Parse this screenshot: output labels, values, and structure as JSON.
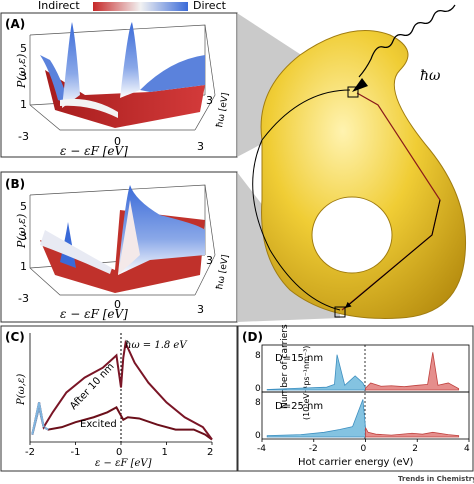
{
  "colorbar": {
    "left_label": "Indirect",
    "right_label": "Direct",
    "left_color": "#c62828",
    "mid_color": "#f2f2f2",
    "right_color": "#3a6ad8"
  },
  "panel_a": {
    "label": "(A)",
    "z_axis_label": "P(ω,ε)",
    "z_ticks": [
      "1",
      "3",
      "5"
    ],
    "x_ticks": [
      "-3",
      "0",
      "3"
    ],
    "x_axis_label": "ε − εF [eV]",
    "depth_tick": "3",
    "depth_axis_label": "ħω [eV]"
  },
  "panel_b": {
    "label": "(B)",
    "z_axis_label": "P(ω,ε)",
    "z_ticks": [
      "1",
      "3",
      "5"
    ],
    "x_ticks": [
      "-3",
      "0",
      "3"
    ],
    "x_axis_label": "ε − εF [eV]",
    "depth_tick": "3",
    "depth_axis_label": "ħω [eV]"
  },
  "illustration": {
    "photon_label": "ħω",
    "body_color": "#e8c22a"
  },
  "panel_c": {
    "label": "(C)",
    "photon_annotation": "ħω = 1.8 eV",
    "curve_labels": [
      "After 10 nm",
      "Excited"
    ],
    "y_axis_label": "P(ω,ε)",
    "x_axis_label": "ε − εF [eV]",
    "x_ticks": [
      "-2",
      "-1",
      "0",
      "1",
      "2"
    ]
  },
  "panel_d": {
    "label": "(D)",
    "subpanels": [
      {
        "label": "D=15 nm",
        "y_ticks": [
          "0",
          "8"
        ]
      },
      {
        "label": "D=25 nm",
        "y_ticks": [
          "0",
          "8"
        ]
      }
    ],
    "y_axis_label_line1": "Number of carriers",
    "y_axis_label_line2": "(10³eV⁻¹ps⁻¹nm⁻³)",
    "x_axis_label": "Hot carrier energy (eV)",
    "x_ticks": [
      "-4",
      "-2",
      "0",
      "2",
      "4"
    ]
  },
  "credit": "Trends in Chemistry",
  "chart_data": [
    {
      "type": "line",
      "panel": "C",
      "x_range": [
        -2,
        2
      ],
      "series": [
        {
          "x": [
            -1.95,
            -1.8,
            -1.7,
            -1.6,
            -1.3,
            -1.0,
            -0.6,
            -0.3,
            -0.1,
            0.05,
            0.15,
            0.4,
            0.8,
            1.2,
            1.6,
            1.85,
            2.0
          ],
          "y": [
            0.3,
            1.4,
            0.6,
            0.5,
            0.6,
            0.8,
            1.0,
            1.2,
            1.4,
            0.9,
            1.0,
            0.95,
            0.7,
            0.5,
            0.5,
            0.3,
            0.1
          ]
        },
        {
          "x": [
            -1.95,
            -1.8,
            -1.7,
            -1.5,
            -1.2,
            -0.8,
            -0.4,
            -0.1,
            0.0,
            0.05,
            0.1,
            0.3,
            0.6,
            1.0,
            1.4,
            1.8,
            2.0
          ],
          "y": [
            0.3,
            1.6,
            0.6,
            1.2,
            2.0,
            2.6,
            3.0,
            3.5,
            2.2,
            3.4,
            4.0,
            3.2,
            2.4,
            1.6,
            1.0,
            0.6,
            0.1
          ]
        }
      ]
    },
    {
      "type": "area",
      "panel": "D",
      "x_range": [
        -4,
        4
      ],
      "series": [
        {
          "x": [
            -3.8,
            -2.5,
            -1.5,
            -1.2,
            -1.1,
            -0.8,
            -0.4,
            -0.1,
            0.0,
            0.2,
            0.6,
            1.0,
            1.5,
            2.0,
            2.4,
            2.6,
            2.8,
            3.2,
            3.6
          ],
          "y": [
            0.1,
            0.4,
            0.6,
            1.2,
            7.5,
            1.0,
            3.0,
            1.5,
            0.4,
            1.5,
            0.8,
            0.9,
            0.7,
            1.0,
            1.2,
            8.0,
            1.0,
            1.5,
            0.3
          ]
        },
        {
          "x": [
            -3.8,
            -2.5,
            -1.6,
            -1.0,
            -0.5,
            -0.1,
            0.0,
            0.1,
            0.4,
            1.0,
            1.8,
            2.2,
            2.6,
            3.2,
            3.6
          ],
          "y": [
            0.3,
            0.5,
            1.0,
            1.6,
            2.2,
            8.0,
            2.0,
            1.0,
            0.6,
            0.4,
            0.8,
            0.6,
            1.0,
            0.5,
            0.3
          ]
        }
      ]
    }
  ]
}
